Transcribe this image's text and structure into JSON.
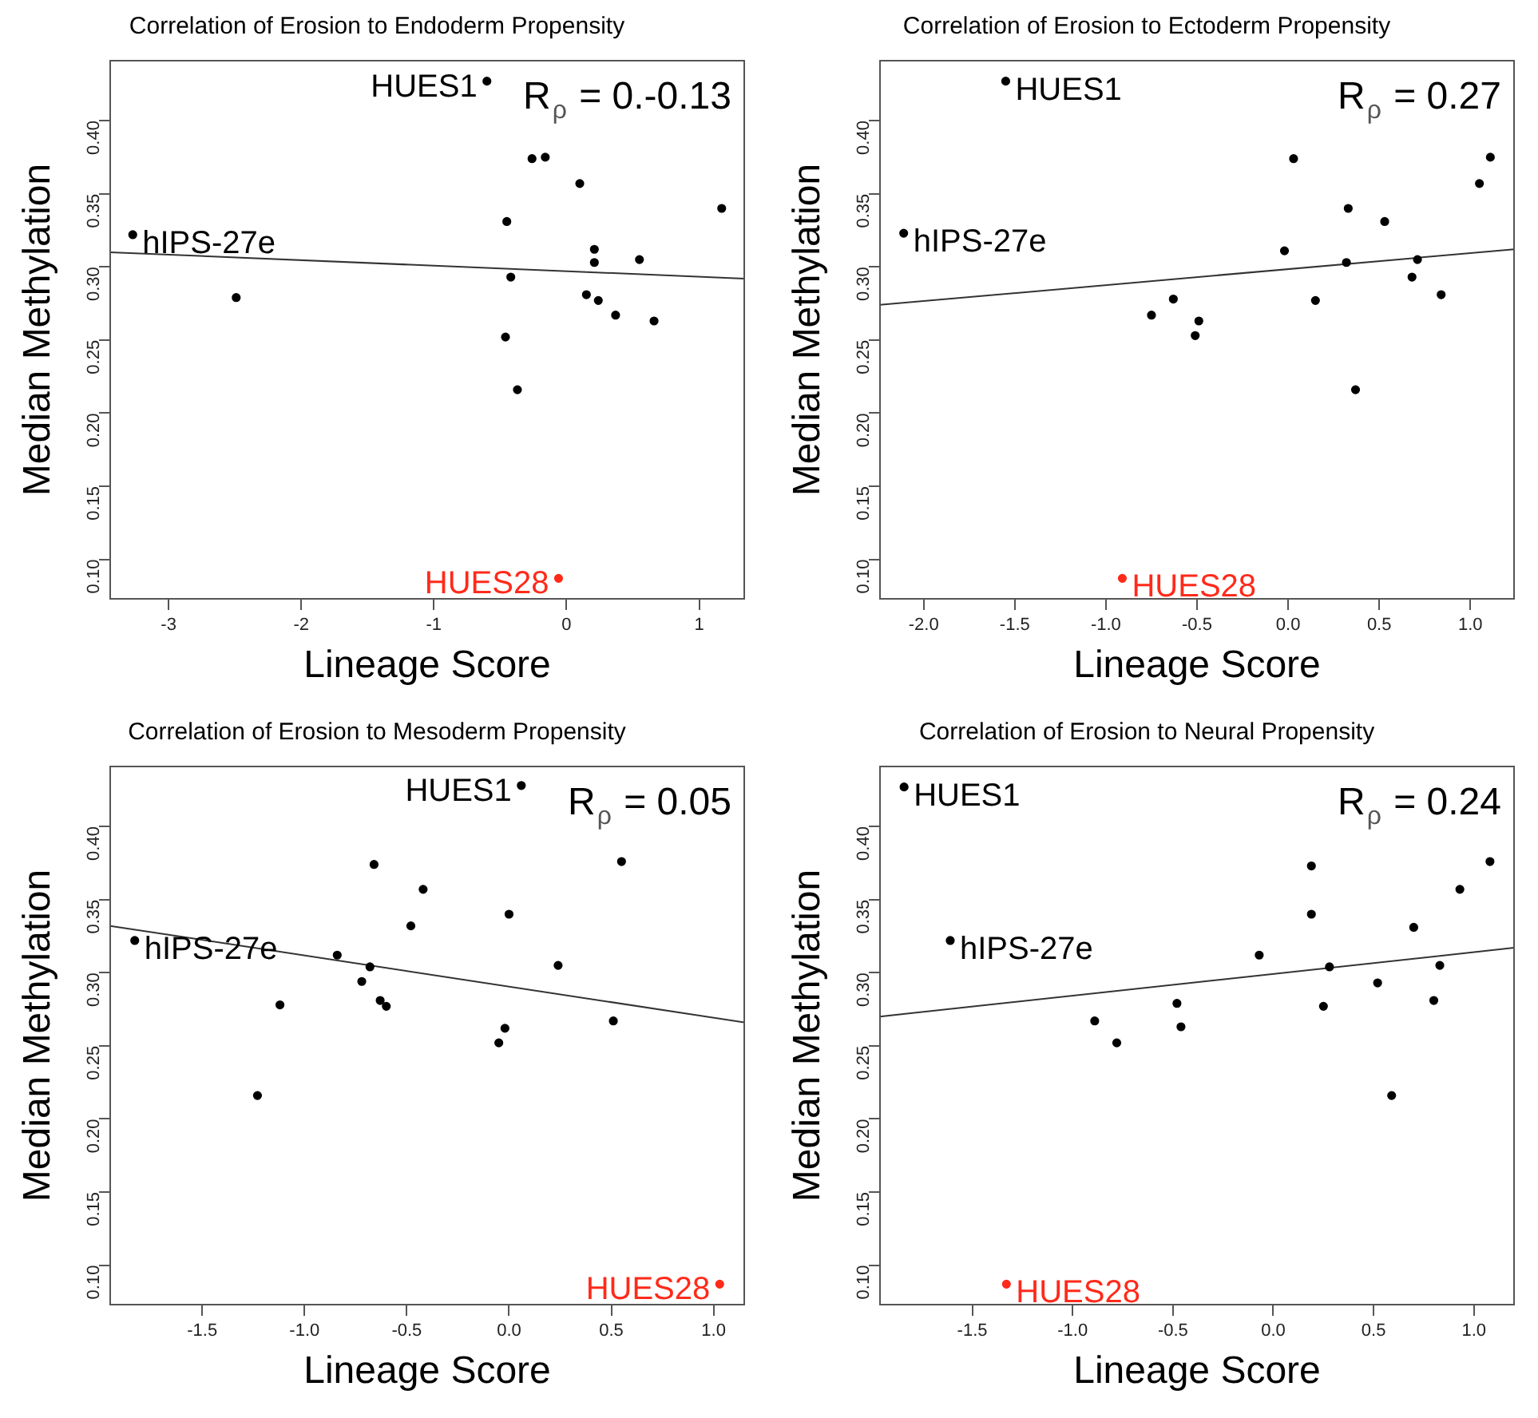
{
  "chart_data": [
    {
      "type": "scatter",
      "title": "Correlation of Erosion to Endoderm Propensity",
      "xlabel": "Lineage Score",
      "ylabel": "Median Methylation",
      "marker": "circle",
      "xlim": [
        -3.44,
        1.34
      ],
      "xticks": [
        -3,
        -2,
        -1,
        0,
        1
      ],
      "ylim": [
        0.073,
        0.441
      ],
      "yticks": [
        {
          "value": 0.1,
          "label": "0.10"
        },
        {
          "value": 0.15,
          "label": "0.15"
        },
        {
          "value": 0.2,
          "label": "0.20"
        },
        {
          "value": 0.25,
          "label": "0.25"
        },
        {
          "value": 0.3,
          "label": "0.30"
        },
        {
          "value": 0.35,
          "label": "0.35"
        },
        {
          "value": 0.4,
          "label": "0.40"
        }
      ],
      "series": [
        {
          "type": "scatter",
          "color": "#000000",
          "x": [
            -0.6,
            -3.27,
            -2.49,
            -0.26,
            -0.16,
            0.1,
            -0.45,
            1.17,
            0.21,
            0.21,
            0.55,
            -0.42,
            0.15,
            0.24,
            0.37,
            0.66,
            -0.46,
            -0.37
          ],
          "values": [
            0.427,
            0.322,
            0.279,
            0.374,
            0.375,
            0.357,
            0.331,
            0.34,
            0.312,
            0.303,
            0.305,
            0.293,
            0.281,
            0.277,
            0.267,
            0.263,
            0.252,
            0.216
          ]
        },
        {
          "type": "scatter",
          "color": "#ff2a1a",
          "x": [
            -0.06
          ],
          "values": [
            0.087
          ]
        },
        {
          "type": "line",
          "color": "#333333",
          "line_style": "solid",
          "marker": "none",
          "x": [
            -3.44,
            1.34
          ],
          "values": [
            0.31,
            0.292
          ]
        }
      ],
      "annotations": [
        {
          "text": "HUES1",
          "x": -0.6,
          "y": 0.427
        },
        {
          "text": "hIPS-27e",
          "x": -3.27,
          "y": 0.322
        },
        {
          "text": "HUES28",
          "x": -0.06,
          "y": 0.087
        },
        "R$_{ρ}$ = 0.-0.13"
      ]
    },
    {
      "type": "scatter",
      "title": "Correlation of Erosion to Ectoderm Propensity",
      "xlabel": "Lineage Score",
      "ylabel": "Median Methylation",
      "marker": "circle",
      "xlim": [
        -2.24,
        1.24
      ],
      "xticks": [
        {
          "value": -2,
          "label": "-2.0"
        },
        {
          "value": -1.5,
          "label": "-1.5"
        },
        {
          "value": -1,
          "label": "-1.0"
        },
        {
          "value": -0.5,
          "label": "-0.5"
        },
        {
          "value": 0,
          "label": "0.0"
        },
        {
          "value": 0.5,
          "label": "0.5"
        },
        {
          "value": 1,
          "label": "1.0"
        }
      ],
      "ylim": [
        0.073,
        0.441
      ],
      "yticks": [
        {
          "value": 0.1,
          "label": "0.10"
        },
        {
          "value": 0.15,
          "label": "0.15"
        },
        {
          "value": 0.2,
          "label": "0.20"
        },
        {
          "value": 0.25,
          "label": "0.25"
        },
        {
          "value": 0.3,
          "label": "0.30"
        },
        {
          "value": 0.35,
          "label": "0.35"
        },
        {
          "value": 0.4,
          "label": "0.40"
        }
      ],
      "series": [
        {
          "type": "scatter",
          "color": "#000000",
          "x": [
            -1.55,
            -2.11,
            0.03,
            1.11,
            1.05,
            0.33,
            0.53,
            -0.02,
            0.32,
            0.71,
            0.68,
            0.84,
            0.15,
            -0.63,
            -0.75,
            -0.49,
            -0.51,
            0.37
          ],
          "values": [
            0.427,
            0.323,
            0.374,
            0.375,
            0.357,
            0.34,
            0.331,
            0.311,
            0.303,
            0.305,
            0.293,
            0.281,
            0.277,
            0.278,
            0.267,
            0.263,
            0.253,
            0.216
          ]
        },
        {
          "type": "scatter",
          "color": "#ff2a1a",
          "x": [
            -0.91
          ],
          "values": [
            0.087
          ]
        },
        {
          "type": "line",
          "color": "#333333",
          "line_style": "solid",
          "marker": "none",
          "x": [
            -2.24,
            1.24
          ],
          "values": [
            0.274,
            0.312
          ]
        }
      ],
      "annotations": [
        {
          "text": "HUES1",
          "x": -1.55,
          "y": 0.427
        },
        {
          "text": "hIPS-27e",
          "x": -2.11,
          "y": 0.323
        },
        {
          "text": "HUES28",
          "x": -0.91,
          "y": 0.087
        },
        "R$_{ρ}$ = 0.27"
      ]
    },
    {
      "type": "scatter",
      "title": "Correlation of Erosion to Mesoderm Propensity",
      "xlabel": "Lineage Score",
      "ylabel": "Median Methylation",
      "marker": "circle",
      "xlim": [
        -1.95,
        1.15
      ],
      "xticks": [
        {
          "value": -1.5,
          "label": "-1.5"
        },
        {
          "value": -1,
          "label": "-1.0"
        },
        {
          "value": -0.5,
          "label": "-0.5"
        },
        {
          "value": 0,
          "label": "0.0"
        },
        {
          "value": 0.5,
          "label": "0.5"
        },
        {
          "value": 1,
          "label": "1.0"
        }
      ],
      "ylim": [
        0.073,
        0.441
      ],
      "yticks": [
        {
          "value": 0.1,
          "label": "0.10"
        },
        {
          "value": 0.15,
          "label": "0.15"
        },
        {
          "value": 0.2,
          "label": "0.20"
        },
        {
          "value": 0.25,
          "label": "0.25"
        },
        {
          "value": 0.3,
          "label": "0.30"
        },
        {
          "value": 0.35,
          "label": "0.35"
        },
        {
          "value": 0.4,
          "label": "0.40"
        }
      ],
      "series": [
        {
          "type": "scatter",
          "color": "#000000",
          "x": [
            0.06,
            -1.83,
            -0.66,
            0.55,
            -0.42,
            0.0,
            -0.48,
            -0.84,
            -0.68,
            0.24,
            -0.72,
            -0.63,
            -0.6,
            -1.12,
            -0.02,
            0.51,
            -0.05,
            -1.23
          ],
          "values": [
            0.428,
            0.322,
            0.374,
            0.376,
            0.357,
            0.34,
            0.332,
            0.312,
            0.304,
            0.305,
            0.294,
            0.281,
            0.277,
            0.278,
            0.262,
            0.267,
            0.252,
            0.216
          ]
        },
        {
          "type": "scatter",
          "color": "#ff2a1a",
          "x": [
            1.03
          ],
          "values": [
            0.087
          ]
        },
        {
          "type": "line",
          "color": "#333333",
          "line_style": "solid",
          "marker": "none",
          "x": [
            -1.95,
            1.15
          ],
          "values": [
            0.332,
            0.266
          ]
        }
      ],
      "annotations": [
        {
          "text": "HUES1",
          "x": 0.06,
          "y": 0.428
        },
        {
          "text": "hIPS-27e",
          "x": -1.83,
          "y": 0.322
        },
        {
          "text": "HUES28",
          "x": 1.03,
          "y": 0.087
        },
        "R$_{ρ}$ = 0.05"
      ]
    },
    {
      "type": "scatter",
      "title": "Correlation of Erosion to Neural Propensity",
      "xlabel": "Lineage Score",
      "ylabel": "Median Methylation",
      "marker": "circle",
      "xlim": [
        -1.96,
        1.2
      ],
      "xticks": [
        {
          "value": -1.5,
          "label": "-1.5"
        },
        {
          "value": -1,
          "label": "-1.0"
        },
        {
          "value": -0.5,
          "label": "-0.5"
        },
        {
          "value": 0,
          "label": "0.0"
        },
        {
          "value": 0.5,
          "label": "0.5"
        },
        {
          "value": 1,
          "label": "1.0"
        }
      ],
      "ylim": [
        0.073,
        0.441
      ],
      "yticks": [
        {
          "value": 0.1,
          "label": "0.10"
        },
        {
          "value": 0.15,
          "label": "0.15"
        },
        {
          "value": 0.2,
          "label": "0.20"
        },
        {
          "value": 0.25,
          "label": "0.25"
        },
        {
          "value": 0.3,
          "label": "0.30"
        },
        {
          "value": 0.35,
          "label": "0.35"
        },
        {
          "value": 0.4,
          "label": "0.40"
        }
      ],
      "series": [
        {
          "type": "scatter",
          "color": "#000000",
          "x": [
            -1.84,
            -1.61,
            0.19,
            1.08,
            0.93,
            0.19,
            0.7,
            -0.07,
            0.28,
            0.83,
            0.52,
            0.8,
            0.25,
            -0.48,
            -0.89,
            -0.46,
            -0.78,
            0.59
          ],
          "values": [
            0.427,
            0.322,
            0.373,
            0.376,
            0.357,
            0.34,
            0.331,
            0.312,
            0.304,
            0.305,
            0.293,
            0.281,
            0.277,
            0.279,
            0.267,
            0.263,
            0.252,
            0.216
          ]
        },
        {
          "type": "scatter",
          "color": "#ff2a1a",
          "x": [
            -1.33
          ],
          "values": [
            0.087
          ]
        },
        {
          "type": "line",
          "color": "#333333",
          "line_style": "solid",
          "marker": "none",
          "x": [
            -1.96,
            1.2
          ],
          "values": [
            0.27,
            0.317
          ]
        }
      ],
      "annotations": [
        {
          "text": "HUES1",
          "x": -1.84,
          "y": 0.427
        },
        {
          "text": "hIPS-27e",
          "x": -1.61,
          "y": 0.322
        },
        {
          "text": "HUES28",
          "x": -1.33,
          "y": 0.087
        },
        "R$_{ρ}$ = 0.24"
      ]
    }
  ]
}
